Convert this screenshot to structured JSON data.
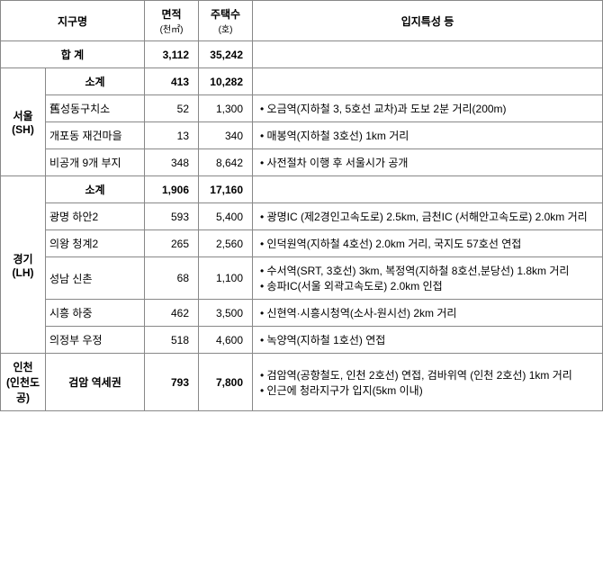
{
  "headers": {
    "district": "지구명",
    "area": "면적",
    "area_unit": "(천㎡)",
    "houses": "주택수",
    "houses_unit": "(호)",
    "desc": "입지특성 등"
  },
  "total": {
    "label": "합 계",
    "area": "3,112",
    "houses": "35,242"
  },
  "seoul": {
    "region": "서울\n(SH)",
    "subtotal": {
      "label": "소계",
      "area": "413",
      "houses": "10,282"
    },
    "rows": [
      {
        "name": "舊성동구치소",
        "area": "52",
        "houses": "1,300",
        "pts": [
          "오금역(지하철 3, 5호선 교차)과 도보 2분 거리(200m)"
        ]
      },
      {
        "name": "개포동 재건마을",
        "area": "13",
        "houses": "340",
        "pts": [
          "매봉역(지하철 3호선) 1km 거리"
        ]
      },
      {
        "name": "비공개 9개 부지",
        "area": "348",
        "houses": "8,642",
        "pts": [
          "사전절차 이행 후 서울시가 공개"
        ]
      }
    ]
  },
  "gyeonggi": {
    "region": "경기\n(LH)",
    "subtotal": {
      "label": "소계",
      "area": "1,906",
      "houses": "17,160"
    },
    "rows": [
      {
        "name": "광명 하안2",
        "area": "593",
        "houses": "5,400",
        "pts": [
          "광명IC (제2경인고속도로) 2.5km, 금천IC (서해안고속도로) 2.0km 거리"
        ]
      },
      {
        "name": "의왕 청계2",
        "area": "265",
        "houses": "2,560",
        "pts": [
          "인덕원역(지하철 4호선) 2.0km 거리, 국지도 57호선 연접"
        ]
      },
      {
        "name": "성남 신촌",
        "area": "68",
        "houses": "1,100",
        "pts": [
          "수서역(SRT, 3호선) 3km, 복정역(지하철 8호선,분당선) 1.8km 거리",
          "송파IC(서울 외곽고속도로) 2.0km 인접"
        ]
      },
      {
        "name": "시흥 하중",
        "area": "462",
        "houses": "3,500",
        "pts": [
          "신현역·시흥시청역(소사-원시선) 2km 거리"
        ]
      },
      {
        "name": "의정부 우정",
        "area": "518",
        "houses": "4,600",
        "pts": [
          "녹양역(지하철 1호선) 연접"
        ]
      }
    ]
  },
  "incheon": {
    "region": "인천\n(인천도공)",
    "rows": [
      {
        "name": "검암 역세권",
        "area": "793",
        "houses": "7,800",
        "pts": [
          "검암역(공항철도, 인천 2호선) 연접, 검바위역 (인천 2호선) 1km 거리",
          "인근에 청라지구가 입지(5km 이내)"
        ]
      }
    ]
  }
}
